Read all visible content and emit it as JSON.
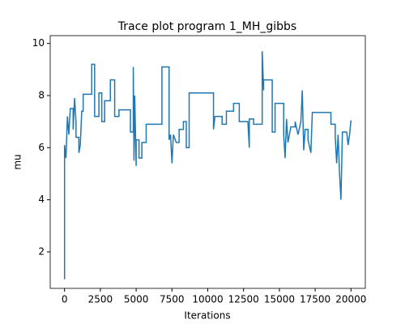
{
  "chart_data": {
    "type": "line",
    "title": "Trace plot program 1_MH_gibbs",
    "x_label": "Iterations",
    "y_label": "mu",
    "x": [
      0,
      0,
      100,
      200,
      300,
      400,
      600,
      600,
      700,
      800,
      800,
      1000,
      1000,
      1100,
      1200,
      1300,
      1300,
      1900,
      1900,
      2100,
      2100,
      2400,
      2400,
      2600,
      2600,
      2800,
      2800,
      3200,
      3200,
      3500,
      3500,
      3800,
      3800,
      4600,
      4600,
      4800,
      4800,
      4850,
      4900,
      5000,
      5000,
      5200,
      5200,
      5400,
      5400,
      5700,
      5700,
      6800,
      6800,
      7300,
      7300,
      7400,
      7500,
      7600,
      7800,
      8000,
      8000,
      8300,
      8300,
      8500,
      8500,
      8700,
      8700,
      10400,
      10400,
      10500,
      11000,
      11000,
      11300,
      11300,
      11800,
      11800,
      12200,
      12200,
      12800,
      12900,
      12900,
      13200,
      13200,
      13800,
      13800,
      13900,
      13900,
      14500,
      14500,
      14700,
      14700,
      15300,
      15300,
      15400,
      15500,
      15600,
      15800,
      16100,
      16100,
      16300,
      16500,
      16600,
      16700,
      16800,
      17000,
      17000,
      17200,
      17300,
      18600,
      18600,
      18900,
      18900,
      19000,
      19100,
      19200,
      19300,
      19400,
      19700,
      19800,
      19900,
      20000
    ],
    "series": [
      {
        "name": "mu",
        "color": "#1f77b4",
        "values": [
          0.95,
          6.1,
          5.6,
          7.2,
          6.5,
          7.5,
          7.5,
          6.7,
          7.9,
          7.0,
          6.4,
          6.4,
          5.8,
          6.1,
          7.4,
          7.4,
          8.05,
          8.05,
          9.2,
          9.2,
          7.2,
          7.2,
          8.1,
          8.1,
          7.0,
          7.0,
          7.8,
          7.8,
          8.6,
          8.6,
          7.2,
          7.2,
          7.45,
          7.45,
          6.6,
          6.6,
          9.1,
          5.5,
          8.0,
          5.3,
          6.3,
          6.3,
          5.6,
          5.6,
          6.2,
          6.2,
          6.9,
          6.9,
          9.1,
          9.1,
          6.3,
          6.5,
          5.4,
          6.5,
          6.2,
          6.2,
          6.7,
          6.7,
          7.0,
          7.0,
          6.0,
          6.0,
          8.1,
          8.1,
          6.7,
          7.2,
          7.2,
          6.9,
          6.9,
          7.4,
          7.4,
          7.7,
          7.7,
          7.0,
          7.0,
          6.0,
          7.1,
          7.1,
          6.9,
          6.9,
          9.7,
          8.2,
          8.6,
          8.6,
          6.6,
          6.6,
          7.7,
          7.7,
          6.5,
          5.6,
          7.1,
          6.2,
          6.8,
          6.8,
          7.0,
          6.5,
          7.0,
          8.2,
          5.9,
          6.7,
          6.7,
          6.3,
          5.8,
          7.35,
          7.35,
          6.9,
          6.9,
          6.4,
          5.4,
          6.5,
          5.0,
          4.0,
          6.6,
          6.6,
          6.1,
          6.5,
          7.05
        ]
      }
    ],
    "xlim": [
      -1000,
      21000
    ],
    "ylim": [
      0.6,
      10.3
    ],
    "xticks": [
      0,
      2500,
      5000,
      7500,
      10000,
      12500,
      15000,
      17500,
      20000
    ],
    "yticks": [
      2,
      4,
      6,
      8,
      10
    ]
  }
}
